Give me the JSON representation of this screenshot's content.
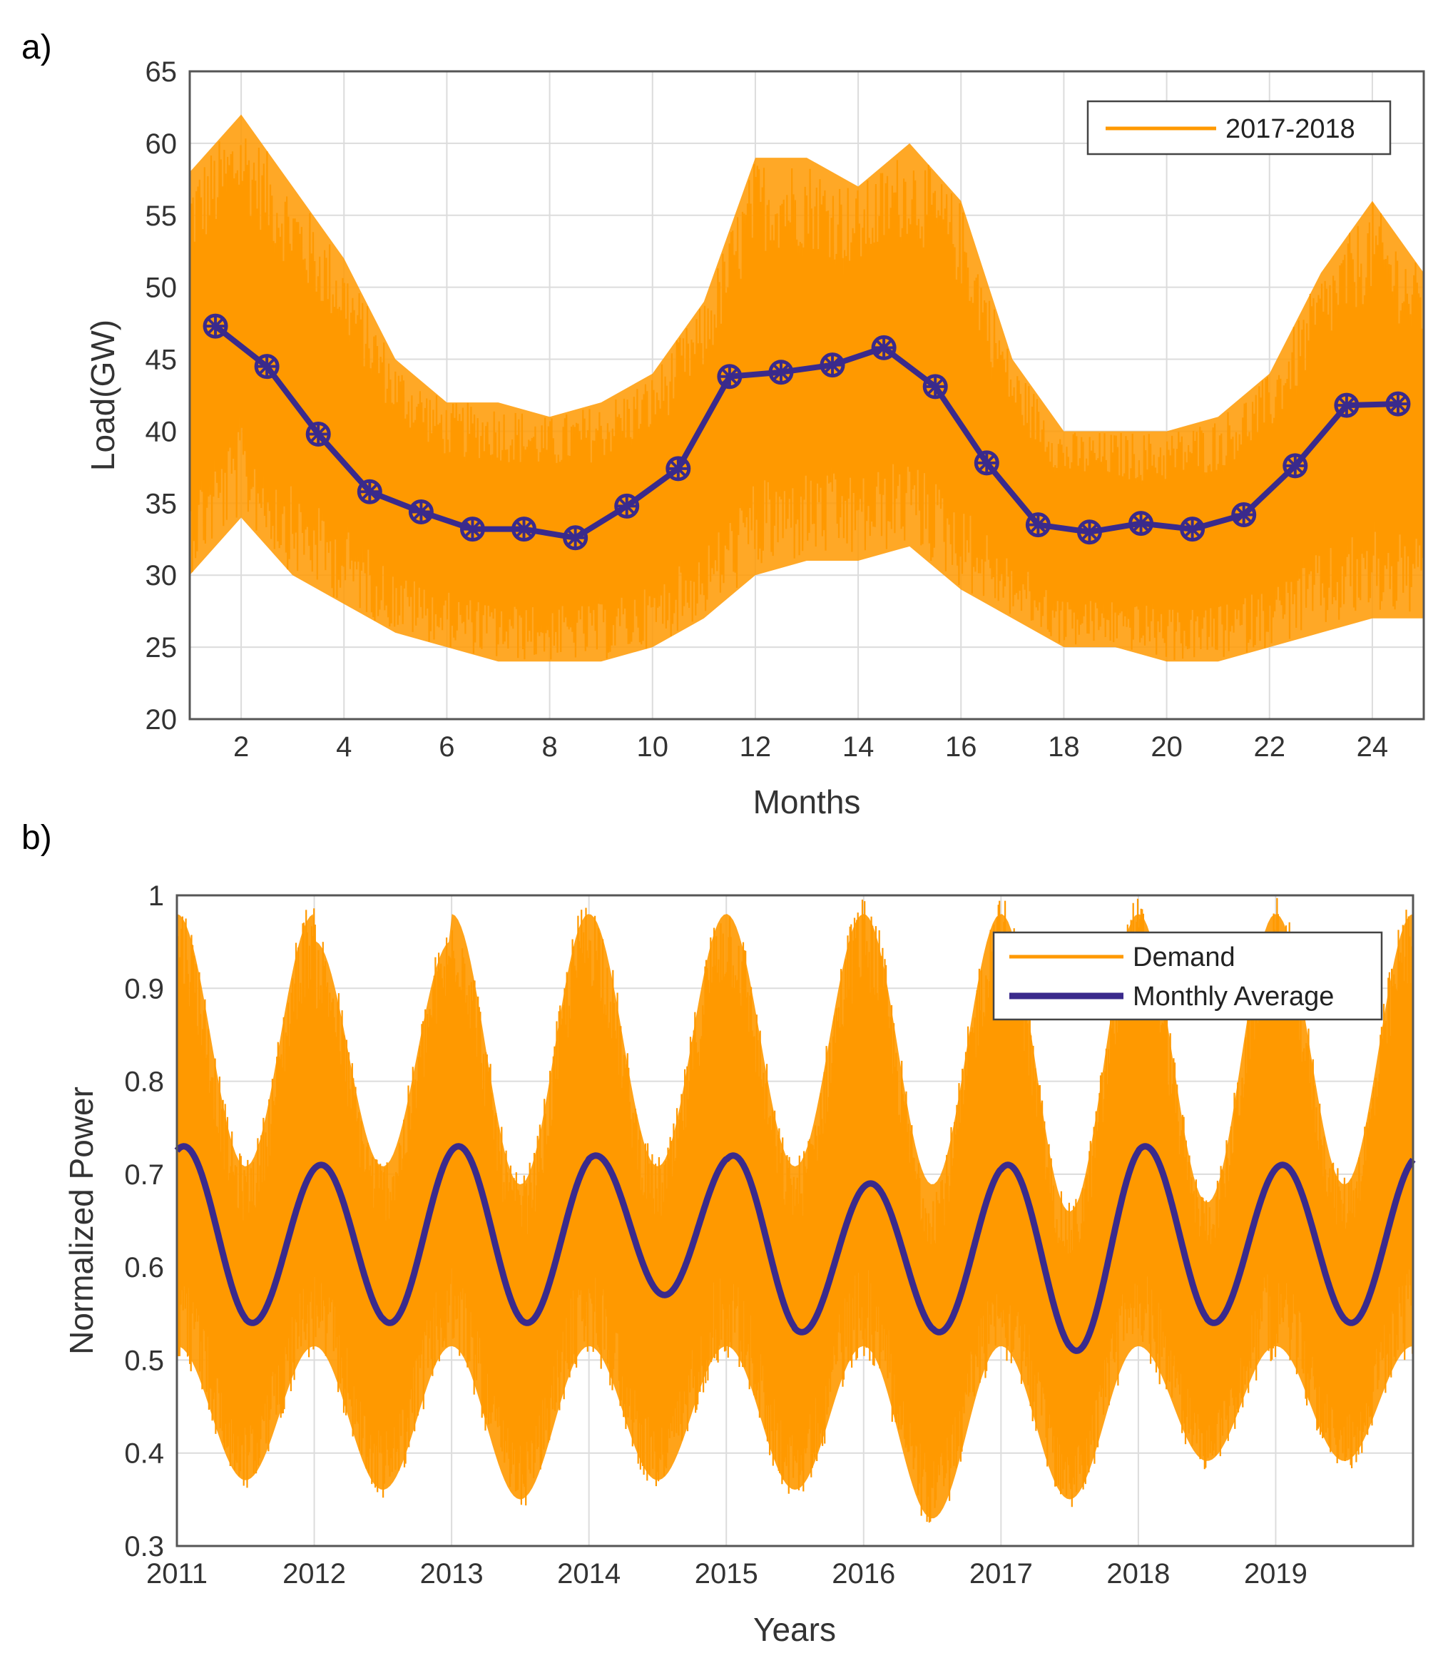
{
  "colors": {
    "demand": "#FF9900",
    "average": "#3A2A8C",
    "grid": "#dcdcdc",
    "axis": "#555555"
  },
  "chart_data": [
    {
      "panel_label": "a)",
      "type": "line",
      "xlabel": "Months",
      "ylabel": "Load(GW)",
      "xlim": [
        1,
        25
      ],
      "ylim": [
        20,
        65
      ],
      "xticks": [
        2,
        4,
        6,
        8,
        10,
        12,
        14,
        16,
        18,
        20,
        22,
        24
      ],
      "yticks": [
        20,
        25,
        30,
        35,
        40,
        45,
        50,
        55,
        60,
        65
      ],
      "grid": true,
      "legend": {
        "position": "top-right",
        "entries": [
          "2017-2018"
        ]
      },
      "series": [
        {
          "name": "2017-2018",
          "kind": "hourly-band",
          "band_months": [
            1,
            2,
            3,
            4,
            5,
            6,
            7,
            8,
            9,
            10,
            11,
            12,
            13,
            14,
            15,
            16,
            17,
            18,
            19,
            20,
            21,
            22,
            23,
            24,
            25
          ],
          "band_upper": [
            58,
            62,
            57,
            52,
            45,
            42,
            42,
            41,
            42,
            44,
            49,
            59,
            59,
            57,
            60,
            56,
            45,
            40,
            40,
            40,
            41,
            44,
            51,
            56,
            51
          ],
          "band_lower": [
            30,
            34,
            30,
            28,
            26,
            25,
            24,
            24,
            24,
            25,
            27,
            30,
            31,
            31,
            32,
            29,
            27,
            25,
            25,
            24,
            24,
            25,
            26,
            27,
            27
          ]
        },
        {
          "name": "Monthly Average",
          "kind": "markers-line",
          "x": [
            1.5,
            2.5,
            3.5,
            4.5,
            5.5,
            6.5,
            7.5,
            8.5,
            9.5,
            10.5,
            11.5,
            12.5,
            13.5,
            14.5,
            15.5,
            16.5,
            17.5,
            18.5,
            19.5,
            20.5,
            21.5,
            22.5,
            23.5,
            24.5
          ],
          "values": [
            47.3,
            44.5,
            39.8,
            35.8,
            34.4,
            33.2,
            33.2,
            32.6,
            34.8,
            37.4,
            43.8,
            44.1,
            44.6,
            45.8,
            43.1,
            37.8,
            33.5,
            33.0,
            33.6,
            33.2,
            34.2,
            37.6,
            41.8,
            41.9
          ]
        }
      ]
    },
    {
      "panel_label": "b)",
      "type": "line",
      "xlabel": "Years",
      "ylabel": "Normalized Power",
      "xlim": [
        2011,
        2020
      ],
      "ylim": [
        0.3,
        1.0
      ],
      "xticks": [
        2011,
        2012,
        2013,
        2014,
        2015,
        2016,
        2017,
        2018,
        2019
      ],
      "yticks": [
        0.3,
        0.4,
        0.5,
        0.6,
        0.7,
        0.8,
        0.9,
        1
      ],
      "grid": true,
      "legend": {
        "position": "top-right",
        "entries": [
          "Demand",
          "Monthly Average"
        ]
      },
      "series": [
        {
          "name": "Demand",
          "kind": "hourly-band",
          "annual_peaks_upper": [
            1.0,
            0.97,
            1.0,
            1.0,
            1.0,
            1.0,
            1.0,
            1.0,
            1.0
          ],
          "annual_troughs_upper": [
            0.72,
            0.72,
            0.7,
            0.72,
            0.72,
            0.7,
            0.67,
            0.68,
            0.7
          ],
          "annual_peaks_lower": [
            0.5,
            0.5,
            0.5,
            0.5,
            0.5,
            0.5,
            0.5,
            0.5,
            0.5
          ],
          "annual_troughs_lower": [
            0.36,
            0.35,
            0.34,
            0.36,
            0.35,
            0.32,
            0.34,
            0.38,
            0.38
          ]
        },
        {
          "name": "Monthly Average",
          "kind": "smooth-line",
          "winter_peaks": [
            0.73,
            0.71,
            0.73,
            0.72,
            0.72,
            0.69,
            0.71,
            0.73,
            0.71
          ],
          "summer_troughs": [
            0.54,
            0.54,
            0.54,
            0.57,
            0.53,
            0.53,
            0.51,
            0.54,
            0.54
          ],
          "end_value": 0.72
        }
      ]
    }
  ]
}
